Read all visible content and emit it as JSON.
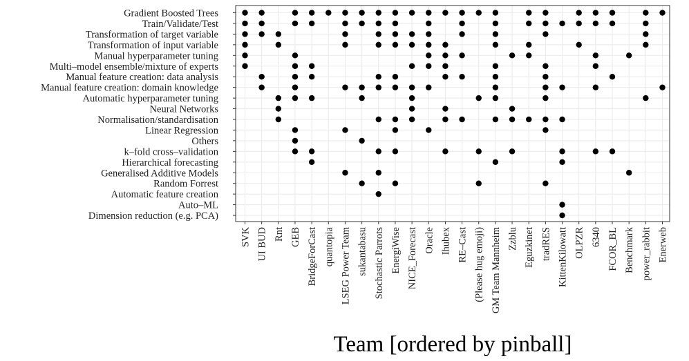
{
  "chart_data": {
    "type": "scatter",
    "title": "",
    "xlabel": "Team [ordered by pinball]",
    "ylabel": "",
    "grid": true,
    "legend": "none",
    "colors": {
      "point": "#000000",
      "grid": "#ebebeb",
      "panel_border": "#333333",
      "background": "#ffffff"
    },
    "teams": [
      "SVK",
      "UI BUD",
      "Rnt",
      "GEB",
      "BridgeForCast",
      "quantopia",
      "LSEG Power Team",
      "sukantabasu",
      "Stochastic Parrots",
      "EnergiWise",
      "NICE_Forecast",
      "Oracle",
      "Ihubex",
      "RE–Cast",
      "(Please hug emoji)",
      "GM Team Mannheim",
      "Zzblu",
      "Eguzkinet",
      "tradRES",
      "KittenKilowatt",
      "OLPZR",
      "6340",
      "FCOR_BL",
      "Benchmark",
      "power_rabbit",
      "Enerweb"
    ],
    "features": [
      "Gradient Boosted Trees",
      "Train/Validate/Test",
      "Transformation of target variable",
      "Transformation of input variable",
      "Manual hyperparameter tuning",
      "Multi–model ensemble/mixture of experts",
      "Manual feature creation: data analysis",
      "Manual feature creation: domain knowledge",
      "Automatic hyperparameter tuning",
      "Neural Networks",
      "Normalisation/standardisation",
      "Linear Regression",
      "Others",
      "k–fold cross–validation",
      "Hierarchical forecasting",
      "Generalised Additive Models",
      "Random Forrest",
      "Automatic feature creation",
      "Auto–ML",
      "Dimension reduction (e.g. PCA)"
    ],
    "points": {
      "Gradient Boosted Trees": [
        "SVK",
        "UI BUD",
        "GEB",
        "BridgeForCast",
        "quantopia",
        "LSEG Power Team",
        "sukantabasu",
        "Stochastic Parrots",
        "EnergiWise",
        "NICE_Forecast",
        "Oracle",
        "Ihubex",
        "RE–Cast",
        "(Please hug emoji)",
        "GM Team Mannheim",
        "Eguzkinet",
        "tradRES",
        "OLPZR",
        "6340",
        "FCOR_BL",
        "power_rabbit",
        "Enerweb"
      ],
      "Train/Validate/Test": [
        "SVK",
        "UI BUD",
        "GEB",
        "BridgeForCast",
        "LSEG Power Team",
        "sukantabasu",
        "Stochastic Parrots",
        "EnergiWise",
        "Oracle",
        "RE–Cast",
        "GM Team Mannheim",
        "Eguzkinet",
        "tradRES",
        "KittenKilowatt",
        "OLPZR",
        "6340",
        "FCOR_BL",
        "power_rabbit"
      ],
      "Transformation of target variable": [
        "SVK",
        "UI BUD",
        "Rnt",
        "LSEG Power Team",
        "Stochastic Parrots",
        "EnergiWise",
        "NICE_Forecast",
        "Oracle",
        "RE–Cast",
        "GM Team Mannheim",
        "tradRES",
        "power_rabbit"
      ],
      "Transformation of input variable": [
        "SVK",
        "Rnt",
        "LSEG Power Team",
        "Stochastic Parrots",
        "EnergiWise",
        "NICE_Forecast",
        "Oracle",
        "Ihubex",
        "GM Team Mannheim",
        "Eguzkinet",
        "OLPZR",
        "power_rabbit"
      ],
      "Manual hyperparameter tuning": [
        "SVK",
        "GEB",
        "Oracle",
        "Ihubex",
        "RE–Cast",
        "Zzblu",
        "Eguzkinet",
        "6340",
        "Benchmark"
      ],
      "Multi–model ensemble/mixture of experts": [
        "SVK",
        "GEB",
        "BridgeForCast",
        "NICE_Forecast",
        "Oracle",
        "Ihubex",
        "GM Team Mannheim",
        "tradRES",
        "6340"
      ],
      "Manual feature creation: data analysis": [
        "UI BUD",
        "GEB",
        "BridgeForCast",
        "Stochastic Parrots",
        "EnergiWise",
        "Ihubex",
        "RE–Cast",
        "GM Team Mannheim",
        "tradRES",
        "FCOR_BL"
      ],
      "Manual feature creation: domain knowledge": [
        "UI BUD",
        "GEB",
        "LSEG Power Team",
        "sukantabasu",
        "Stochastic Parrots",
        "EnergiWise",
        "NICE_Forecast",
        "Oracle",
        "GM Team Mannheim",
        "tradRES",
        "KittenKilowatt",
        "6340",
        "Enerweb"
      ],
      "Automatic hyperparameter tuning": [
        "Rnt",
        "GEB",
        "BridgeForCast",
        "sukantabasu",
        "NICE_Forecast",
        "(Please hug emoji)",
        "GM Team Mannheim",
        "tradRES",
        "power_rabbit"
      ],
      "Neural Networks": [
        "Rnt",
        "NICE_Forecast",
        "Ihubex",
        "Zzblu"
      ],
      "Normalisation/standardisation": [
        "Rnt",
        "Stochastic Parrots",
        "EnergiWise",
        "NICE_Forecast",
        "Ihubex",
        "RE–Cast",
        "GM Team Mannheim",
        "Zzblu",
        "Eguzkinet",
        "tradRES",
        "KittenKilowatt"
      ],
      "Linear Regression": [
        "GEB",
        "LSEG Power Team",
        "EnergiWise",
        "Oracle",
        "tradRES"
      ],
      "Others": [
        "GEB",
        "sukantabasu"
      ],
      "k–fold cross–validation": [
        "GEB",
        "BridgeForCast",
        "Stochastic Parrots",
        "EnergiWise",
        "Ihubex",
        "(Please hug emoji)",
        "Zzblu",
        "KittenKilowatt",
        "6340",
        "FCOR_BL"
      ],
      "Hierarchical forecasting": [
        "BridgeForCast",
        "GM Team Mannheim",
        "KittenKilowatt"
      ],
      "Generalised Additive Models": [
        "LSEG Power Team",
        "Stochastic Parrots",
        "Benchmark"
      ],
      "Random Forrest": [
        "sukantabasu",
        "EnergiWise",
        "(Please hug emoji)",
        "tradRES"
      ],
      "Automatic feature creation": [
        "Stochastic Parrots"
      ],
      "Auto–ML": [
        "KittenKilowatt"
      ],
      "Dimension reduction (e.g. PCA)": [
        "KittenKilowatt"
      ]
    }
  }
}
